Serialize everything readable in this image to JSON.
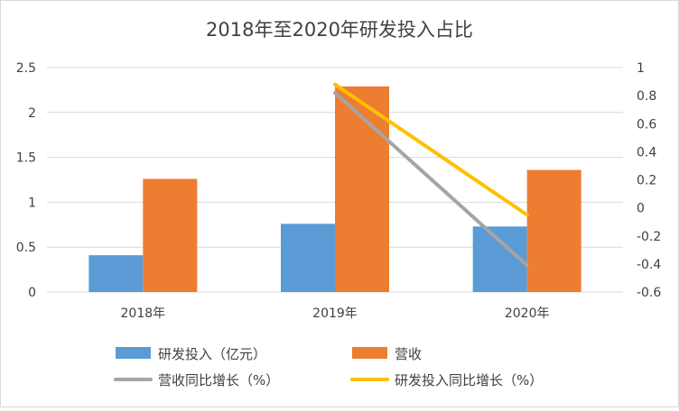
{
  "chart_data": {
    "type": "bar",
    "title": "2018年至2020年研发投入占比",
    "categories": [
      "2018年",
      "2019年",
      "2020年"
    ],
    "ylim": [
      0,
      2.5
    ],
    "yticks": [
      "2.5",
      "2",
      "1.5",
      "1",
      "0.5",
      "0"
    ],
    "y2lim": [
      -0.6,
      1
    ],
    "y2ticks": [
      "1",
      "0.8",
      "0.6",
      "0.4",
      "0.2",
      "0",
      "-0.2",
      "-0.4",
      "-0.6"
    ],
    "grid": true,
    "legend_position": "bottom",
    "series": [
      {
        "name": "研发投入（亿元）",
        "type": "bar",
        "axis": "left",
        "color": "#5B9BD5",
        "values": [
          0.41,
          0.76,
          0.73
        ]
      },
      {
        "name": "营收",
        "type": "bar",
        "axis": "left",
        "color": "#ED7D31",
        "values": [
          1.26,
          2.29,
          1.36
        ]
      },
      {
        "name": "营收同比增长（%）",
        "type": "line",
        "axis": "right",
        "color": "#A5A5A5",
        "values": [
          null,
          0.82,
          -0.41
        ]
      },
      {
        "name": "研发投入同比增长（%）",
        "type": "line",
        "axis": "right",
        "color": "#FFC000",
        "values": [
          null,
          0.88,
          -0.05
        ]
      }
    ]
  }
}
